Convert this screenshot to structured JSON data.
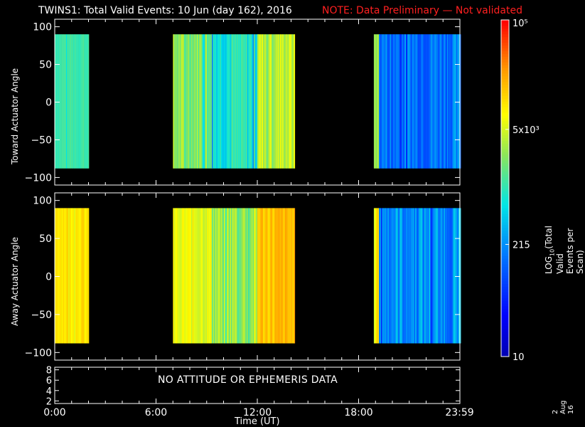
{
  "header": {
    "title": "TWINS1: Total Valid Events: 10 Jun (day 162), 2016",
    "note": "NOTE: Data Preliminary — Not validated"
  },
  "footer": {
    "no_data_message": "NO ATTITUDE OR EPHEMERIS DATA",
    "date_stamp": "2 Aug 16"
  },
  "colorbar": {
    "label": "LOG10(Total Valid Events per Scan)",
    "ticks": [
      {
        "value": 10,
        "label": "10"
      },
      {
        "value": 215,
        "label": "215"
      },
      {
        "value": 5000,
        "label": "5x10³"
      },
      {
        "value": 100000,
        "label": "10⁵"
      }
    ],
    "min": 10,
    "max": 100000,
    "scale": "log",
    "colormap": "rainbow"
  },
  "colors": {
    "background": "#000000",
    "axes": "#ffffff",
    "note": "#ff2020"
  },
  "chart_data": [
    {
      "type": "heatmap",
      "ylabel": "Toward Actuator Angle",
      "xlabel": "",
      "x_range_hours": [
        0,
        24
      ],
      "ylim": [
        -110,
        110
      ],
      "y_extent": [
        -88,
        90
      ],
      "yticks": [
        -100,
        -50,
        0,
        50,
        100
      ],
      "segments": [
        {
          "start_hour": 0.0,
          "end_hour": 2.0,
          "level": 0.52,
          "variability": 0.03
        },
        {
          "start_hour": 7.0,
          "end_hour": 9.3,
          "level": 0.6,
          "variability": 0.07
        },
        {
          "start_hour": 9.3,
          "end_hour": 12.0,
          "level": 0.48,
          "variability": 0.08
        },
        {
          "start_hour": 12.0,
          "end_hour": 14.2,
          "level": 0.66,
          "variability": 0.06
        },
        {
          "start_hour": 18.9,
          "end_hour": 19.2,
          "level": 0.62,
          "variability": 0.04
        },
        {
          "start_hour": 19.2,
          "end_hour": 24.0,
          "level": 0.3,
          "variability": 0.08
        }
      ]
    },
    {
      "type": "heatmap",
      "ylabel": "Away Actuator Angle",
      "xlabel": "",
      "x_range_hours": [
        0,
        24
      ],
      "ylim": [
        -110,
        110
      ],
      "y_extent": [
        -88,
        90
      ],
      "yticks": [
        -100,
        -50,
        0,
        50,
        100
      ],
      "segments": [
        {
          "start_hour": 0.0,
          "end_hour": 2.0,
          "level": 0.76,
          "variability": 0.03
        },
        {
          "start_hour": 7.0,
          "end_hour": 9.3,
          "level": 0.7,
          "variability": 0.05
        },
        {
          "start_hour": 9.3,
          "end_hour": 12.0,
          "level": 0.62,
          "variability": 0.08
        },
        {
          "start_hour": 12.0,
          "end_hour": 14.2,
          "level": 0.8,
          "variability": 0.05
        },
        {
          "start_hour": 18.9,
          "end_hour": 19.2,
          "level": 0.76,
          "variability": 0.04
        },
        {
          "start_hour": 19.2,
          "end_hour": 24.0,
          "level": 0.34,
          "variability": 0.09
        }
      ]
    },
    {
      "type": "line",
      "ylabel": "",
      "xlabel": "Time (UT)",
      "x_range_hours": [
        0,
        24
      ],
      "ylim": [
        1.5,
        8.5
      ],
      "yticks": [
        2,
        4,
        6,
        8
      ],
      "xticks": [
        {
          "hour": 0,
          "label": "0:00"
        },
        {
          "hour": 6,
          "label": "6:00"
        },
        {
          "hour": 12,
          "label": "12:00"
        },
        {
          "hour": 18,
          "label": "18:00"
        },
        {
          "hour": 23.98,
          "label": "23:59"
        }
      ],
      "series": []
    }
  ]
}
